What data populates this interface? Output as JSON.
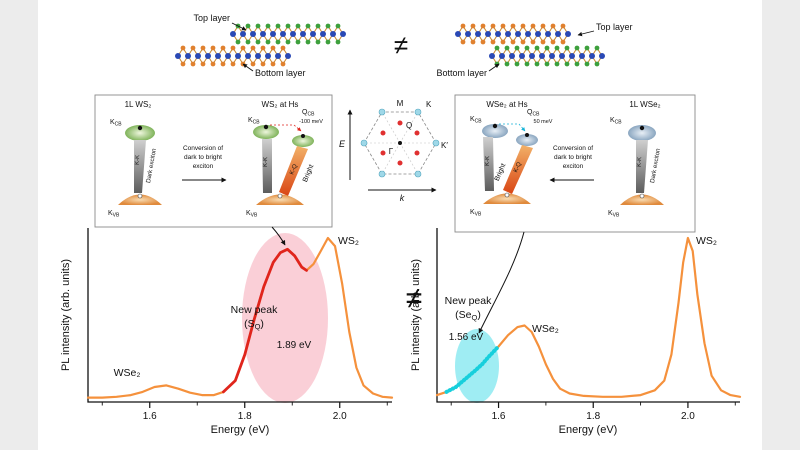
{
  "stacks": {
    "left": {
      "top_label": "Top layer",
      "bottom_label": "Bottom layer"
    },
    "right": {
      "top_label": "Top layer",
      "bottom_label": "Bottom layer"
    },
    "neq": "≠",
    "colors": {
      "metal": "#2a49b5",
      "chalcogen_s": "#3da03d",
      "chalcogen_se": "#e0812f",
      "bond": "#c8862e"
    }
  },
  "insets": {
    "ws2": {
      "title_1l": "1L WS₂",
      "title_hs": "WS₂ at Hs",
      "delta": "-100 meV",
      "conv1": "Conversion of",
      "conv2": "dark to bright",
      "conv3": "exciton"
    },
    "wse2": {
      "title_hs": "WSe₂ at Hs",
      "title_1l": "1L WSe₂",
      "delta": "50 meV",
      "conv1": "Conversion of",
      "conv2": "dark to bright",
      "conv3": "exciton"
    },
    "common": {
      "kcb_base": "K",
      "kcb_sub": "CB",
      "qcb_base": "Q",
      "qcb_sub": "CB",
      "kvb_base": "K",
      "kvb_sub": "VB",
      "kk": "K-K",
      "kq": "K-Q",
      "dark": "Dark exciton",
      "bright": "Bright"
    }
  },
  "bz": {
    "E": "E",
    "k": "k",
    "M": "M",
    "K": "K",
    "Kp": "K′",
    "G": "Γ",
    "Q": "Q"
  },
  "plots": {
    "neq": "≠",
    "left": {
      "ylabel": "PL intensity (arb. units)",
      "xlabel": "Energy (eV)",
      "wse2": "WSe₂",
      "ws2": "WS₂",
      "new_peak": "New peak",
      "peak_open": "(S",
      "peak_sub": "Q",
      "peak_close": ")",
      "energy": "1.89 eV"
    },
    "right": {
      "ylabel": "PL intensity (arb. units)",
      "xlabel": "Energy (eV)",
      "wse2": "WSe₂",
      "ws2": "WS₂",
      "new_peak": "New peak",
      "peak_open": "(Se",
      "peak_sub": "Q",
      "peak_close": ")",
      "energy": "1.56 eV"
    }
  },
  "chart_data": [
    {
      "type": "line",
      "panel": "left",
      "title": "",
      "xlabel": "Energy (eV)",
      "ylabel": "PL intensity (arb. units)",
      "xlim": [
        1.47,
        2.11
      ],
      "xticks": [
        1.6,
        1.8,
        2.0
      ],
      "yticks": [],
      "ylim": [
        0,
        1
      ],
      "series": [
        {
          "name": "PL spectrum (WS₂ stack, left)",
          "color": "#f5913c",
          "x": [
            1.47,
            1.5,
            1.53,
            1.56,
            1.585,
            1.61,
            1.635,
            1.66,
            1.685,
            1.71,
            1.735,
            1.755,
            1.78,
            1.8,
            1.82,
            1.84,
            1.86,
            1.875,
            1.89,
            1.905,
            1.92,
            1.93,
            1.945,
            1.96,
            1.975,
            1.99,
            2.005,
            2.02,
            2.035,
            2.05,
            2.07,
            2.09,
            2.11
          ],
          "y": [
            0.015,
            0.015,
            0.02,
            0.03,
            0.05,
            0.08,
            0.09,
            0.07,
            0.045,
            0.03,
            0.03,
            0.05,
            0.12,
            0.28,
            0.5,
            0.7,
            0.85,
            0.91,
            0.93,
            0.89,
            0.82,
            0.8,
            0.84,
            0.92,
            1.0,
            0.95,
            0.72,
            0.42,
            0.2,
            0.09,
            0.04,
            0.02,
            0.015
          ]
        }
      ],
      "highlight": {
        "type": "segment",
        "range": [
          1.74,
          1.94
        ],
        "color": "#e0251c",
        "label": "New peak (S_Q)",
        "peak_energy_eV": 1.89
      },
      "peaks": [
        {
          "label": "WSe₂",
          "energy_eV": 1.63
        },
        {
          "label": "New peak (S_Q)",
          "energy_eV": 1.89
        },
        {
          "label": "WS₂",
          "energy_eV": 1.98
        }
      ]
    },
    {
      "type": "line",
      "panel": "right",
      "title": "",
      "xlabel": "Energy (eV)",
      "ylabel": "PL intensity (arb. units)",
      "xlim": [
        1.47,
        2.11
      ],
      "xticks": [
        1.6,
        1.8,
        2.0
      ],
      "yticks": [],
      "ylim": [
        0,
        1
      ],
      "series": [
        {
          "name": "PL spectrum (WSe₂ stack, right)",
          "color": "#f5913c",
          "x": [
            1.47,
            1.49,
            1.51,
            1.53,
            1.55,
            1.565,
            1.58,
            1.6,
            1.62,
            1.64,
            1.655,
            1.67,
            1.685,
            1.7,
            1.715,
            1.73,
            1.75,
            1.78,
            1.82,
            1.86,
            1.9,
            1.93,
            1.95,
            1.965,
            1.98,
            1.99,
            2.0,
            2.01,
            2.02,
            2.035,
            2.05,
            2.07,
            2.09,
            2.11
          ],
          "y": [
            0.03,
            0.05,
            0.08,
            0.13,
            0.18,
            0.22,
            0.27,
            0.33,
            0.4,
            0.45,
            0.46,
            0.42,
            0.33,
            0.22,
            0.13,
            0.07,
            0.04,
            0.025,
            0.02,
            0.02,
            0.03,
            0.06,
            0.12,
            0.28,
            0.6,
            0.85,
            1.0,
            0.92,
            0.65,
            0.35,
            0.15,
            0.06,
            0.03,
            0.02
          ]
        }
      ],
      "highlight": {
        "type": "segment",
        "range": [
          1.485,
          1.61
        ],
        "color": "#17cfdc",
        "label": "New peak (Se_Q)",
        "peak_energy_eV": 1.56
      },
      "peaks": [
        {
          "label": "New peak (Se_Q)",
          "energy_eV": 1.56
        },
        {
          "label": "WSe₂",
          "energy_eV": 1.65
        },
        {
          "label": "WS₂",
          "energy_eV": 2.0
        }
      ]
    }
  ]
}
